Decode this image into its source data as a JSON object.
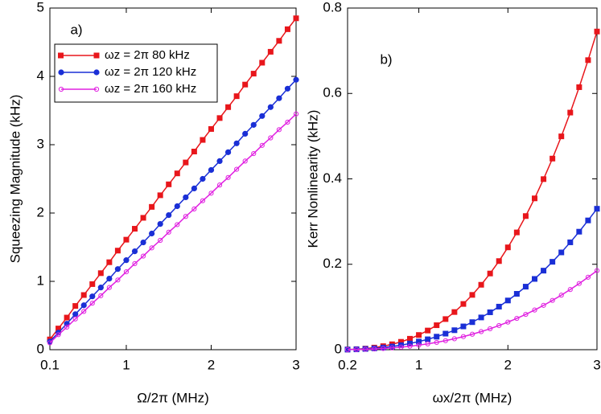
{
  "chart_data": [
    {
      "type": "line",
      "label": "a)",
      "xlabel": "Ω/2π (MHz)",
      "ylabel": "Squeezing Magnitude (kHz)",
      "xlim": [
        0.1,
        3
      ],
      "xticks": [
        0.1,
        1,
        2,
        3
      ],
      "ylim": [
        0,
        5
      ],
      "yticks": [
        0,
        1,
        2,
        3,
        4,
        5
      ],
      "legend": "upper left",
      "x": [
        0.1,
        0.2,
        0.3,
        0.4,
        0.5,
        0.6,
        0.7,
        0.8,
        0.9,
        1.0,
        1.1,
        1.2,
        1.3,
        1.4,
        1.5,
        1.6,
        1.7,
        1.8,
        1.9,
        2.0,
        2.1,
        2.2,
        2.3,
        2.4,
        2.5,
        2.6,
        2.7,
        2.8,
        2.9,
        3.0
      ],
      "series": [
        {
          "name": "ωz = 2π 80 kHz",
          "color": "#e8161b",
          "marker": "square",
          "values": [
            0.15,
            0.31,
            0.47,
            0.64,
            0.8,
            0.96,
            1.12,
            1.28,
            1.45,
            1.61,
            1.77,
            1.93,
            2.09,
            2.26,
            2.42,
            2.58,
            2.74,
            2.9,
            3.07,
            3.23,
            3.39,
            3.55,
            3.71,
            3.88,
            4.04,
            4.2,
            4.36,
            4.52,
            4.69,
            4.85
          ]
        },
        {
          "name": "ωz = 2π 120 kHz",
          "color": "#1a2fd6",
          "marker": "circle",
          "values": [
            0.12,
            0.25,
            0.38,
            0.52,
            0.65,
            0.78,
            0.91,
            1.04,
            1.18,
            1.31,
            1.44,
            1.57,
            1.7,
            1.84,
            1.97,
            2.1,
            2.23,
            2.36,
            2.5,
            2.63,
            2.76,
            2.89,
            3.02,
            3.16,
            3.29,
            3.42,
            3.55,
            3.68,
            3.82,
            3.95
          ]
        },
        {
          "name": "ωz = 2π 160 kHz",
          "color": "#e020e0",
          "marker": "open-circle",
          "values": [
            0.1,
            0.22,
            0.33,
            0.45,
            0.56,
            0.68,
            0.79,
            0.91,
            1.02,
            1.14,
            1.26,
            1.37,
            1.49,
            1.6,
            1.72,
            1.83,
            1.95,
            2.06,
            2.18,
            2.29,
            2.41,
            2.52,
            2.64,
            2.76,
            2.87,
            2.99,
            3.1,
            3.22,
            3.33,
            3.45
          ]
        }
      ]
    },
    {
      "type": "line",
      "label": "b)",
      "xlabel": "ωx/2π (MHz)",
      "ylabel": "Kerr Nonlinearity (kHz)",
      "xlim": [
        0.2,
        3
      ],
      "xticks": [
        0.2,
        1,
        2,
        3
      ],
      "ylim": [
        0,
        0.8
      ],
      "yticks": [
        0,
        0.2,
        0.4,
        0.6,
        0.8
      ],
      "x": [
        0.2,
        0.3,
        0.4,
        0.5,
        0.6,
        0.7,
        0.8,
        0.9,
        1.0,
        1.1,
        1.2,
        1.3,
        1.4,
        1.5,
        1.6,
        1.7,
        1.8,
        1.9,
        2.0,
        2.1,
        2.2,
        2.3,
        2.4,
        2.5,
        2.6,
        2.7,
        2.8,
        2.9,
        3.0
      ],
      "series": [
        {
          "color": "#e8161b",
          "marker": "square",
          "values": [
            0.0004,
            0.0012,
            0.0026,
            0.0049,
            0.0082,
            0.0127,
            0.0184,
            0.0256,
            0.0344,
            0.0449,
            0.0573,
            0.0717,
            0.0882,
            0.1071,
            0.1283,
            0.152,
            0.1784,
            0.2075,
            0.2396,
            0.2746,
            0.3129,
            0.3543,
            0.3994,
            0.4475,
            0.4995,
            0.5552,
            0.6147,
            0.678,
            0.745
          ]
        },
        {
          "color": "#1a2fd6",
          "marker": "square",
          "values": [
            0.0003,
            0.0008,
            0.0018,
            0.0031,
            0.005,
            0.0075,
            0.0106,
            0.0145,
            0.019,
            0.0243,
            0.0305,
            0.0376,
            0.0456,
            0.0545,
            0.0645,
            0.0755,
            0.0876,
            0.1008,
            0.1152,
            0.1308,
            0.1476,
            0.1657,
            0.1851,
            0.2058,
            0.2278,
            0.2514,
            0.2763,
            0.3027,
            0.33
          ]
        },
        {
          "color": "#e020e0",
          "marker": "open-circle",
          "values": [
            0.0002,
            0.0004,
            0.001,
            0.0017,
            0.0028,
            0.0042,
            0.0059,
            0.0081,
            0.0107,
            0.0136,
            0.0171,
            0.0211,
            0.0256,
            0.0306,
            0.0362,
            0.0423,
            0.0491,
            0.0565,
            0.0646,
            0.0733,
            0.0827,
            0.0929,
            0.1038,
            0.1154,
            0.1277,
            0.1409,
            0.1549,
            0.1697,
            0.185
          ]
        }
      ]
    }
  ]
}
